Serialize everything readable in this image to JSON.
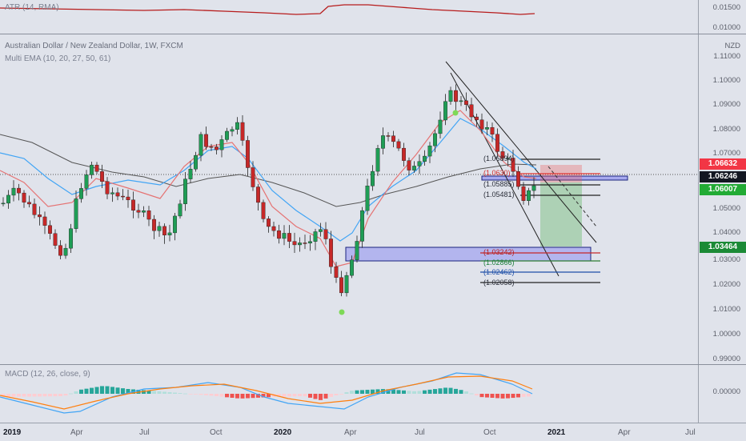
{
  "panes": {
    "atr": {
      "legend": "ATR (14, RMA)",
      "ticks": [
        "0.01500",
        "0.01000"
      ]
    },
    "main": {
      "title": "Australian Dollar / New Zealand Dollar, 1W, FXCM",
      "indicator": "Multi EMA (10, 20, 27, 50, 61)",
      "currency": "NZD",
      "ticks": [
        "1.11000",
        "1.10000",
        "1.09000",
        "1.08000",
        "1.07000",
        "1.05000",
        "1.04000",
        "1.03000",
        "1.02000",
        "1.01000",
        "1.00000",
        "0.99000"
      ],
      "price_tags": [
        {
          "text": "1.06632",
          "color": "#f23645"
        },
        {
          "text": "1.06246",
          "color": "#131722"
        },
        {
          "text": "1.06007",
          "color": "#22ab35"
        },
        {
          "text": "1.03464",
          "color": "#1b8a36"
        }
      ],
      "level_labels": [
        {
          "text": "1.06894",
          "color": "#2a2e39"
        },
        {
          "text": "1.0630",
          "color": "#d32f2f"
        },
        {
          "text": "1.05885",
          "color": "#2a2e39"
        },
        {
          "text": "1.05481",
          "color": "#2a2e39"
        },
        {
          "text": "1.03242",
          "color": "#b71c1c"
        },
        {
          "text": "1.02866",
          "color": "#1b7f3a"
        },
        {
          "text": "1.02462",
          "color": "#1e4fa8"
        },
        {
          "text": "1.02058",
          "color": "#2a2e39"
        }
      ]
    },
    "macd": {
      "legend": "MACD (12, 26, close, 9)",
      "ticks": [
        "0.00000"
      ]
    }
  },
  "time_axis": {
    "ticks": [
      {
        "label": "2019",
        "bold": true
      },
      {
        "label": "Apr",
        "bold": false
      },
      {
        "label": "Jul",
        "bold": false
      },
      {
        "label": "Oct",
        "bold": false
      },
      {
        "label": "2020",
        "bold": true
      },
      {
        "label": "Apr",
        "bold": false
      },
      {
        "label": "Jul",
        "bold": false
      },
      {
        "label": "Oct",
        "bold": false
      },
      {
        "label": "2021",
        "bold": true
      },
      {
        "label": "Apr",
        "bold": false
      },
      {
        "label": "Jul",
        "bold": false
      }
    ]
  },
  "colors": {
    "up": "#26a69a",
    "up_candle": "#1f9d55",
    "down": "#c62828",
    "ema_fast": "#e57373",
    "ema_mid": "#42a5f5",
    "ema_slow": "#555555",
    "atr": "#b71c1c",
    "zone": "#7b7fe0",
    "target": "#4caf50",
    "stop": "#ef5350"
  }
}
